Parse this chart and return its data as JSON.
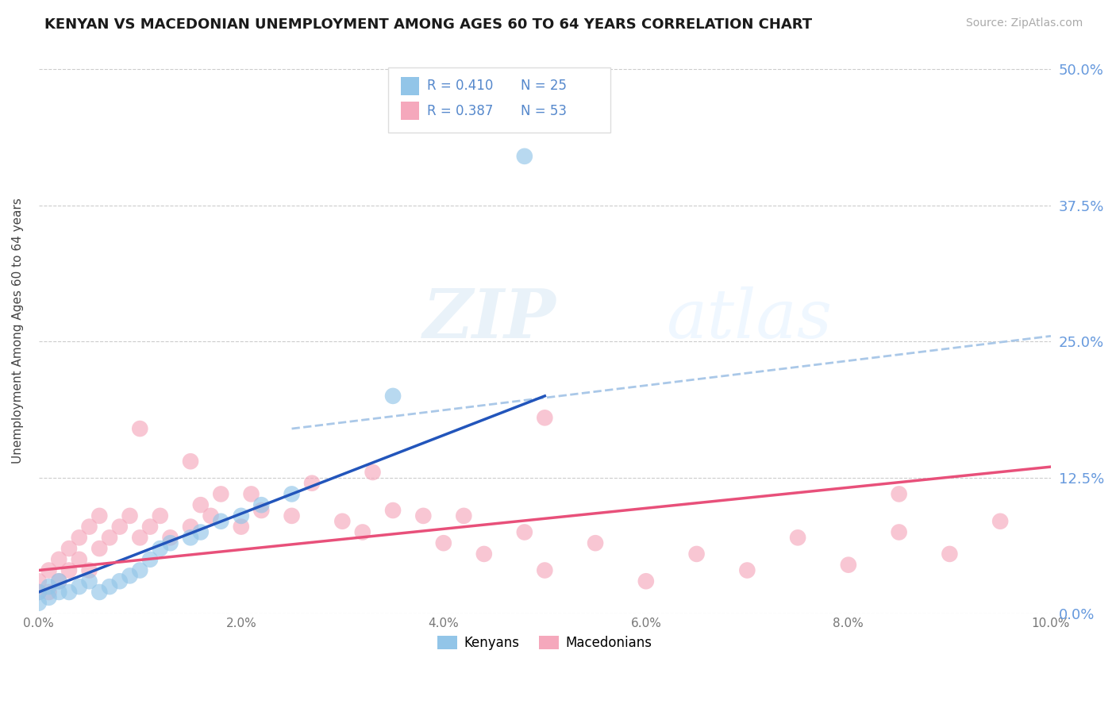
{
  "title": "KENYAN VS MACEDONIAN UNEMPLOYMENT AMONG AGES 60 TO 64 YEARS CORRELATION CHART",
  "source": "Source: ZipAtlas.com",
  "ylabel": "Unemployment Among Ages 60 to 64 years",
  "xlim": [
    0.0,
    0.1
  ],
  "ylim": [
    0.0,
    0.52
  ],
  "xticks": [
    0.0,
    0.02,
    0.04,
    0.06,
    0.08,
    0.1
  ],
  "xticklabels": [
    "0.0%",
    "2.0%",
    "4.0%",
    "6.0%",
    "8.0%",
    "10.0%"
  ],
  "yticks": [
    0.0,
    0.125,
    0.25,
    0.375,
    0.5
  ],
  "yticklabels": [
    "0.0%",
    "12.5%",
    "25.0%",
    "37.5%",
    "50.0%"
  ],
  "legend_r1": "R = 0.410",
  "legend_n1": "N = 25",
  "legend_r2": "R = 0.387",
  "legend_n2": "N = 53",
  "kenyan_color": "#92c5e8",
  "macedonian_color": "#f5a8bc",
  "kenyan_line_color": "#2255bb",
  "macedonian_line_color": "#e8507a",
  "dashed_line_color": "#aac8e8",
  "kenyan_x": [
    0.0,
    0.0,
    0.001,
    0.001,
    0.002,
    0.002,
    0.003,
    0.004,
    0.005,
    0.006,
    0.007,
    0.008,
    0.009,
    0.01,
    0.011,
    0.012,
    0.013,
    0.015,
    0.016,
    0.018,
    0.02,
    0.022,
    0.025,
    0.048,
    0.035
  ],
  "kenyan_y": [
    0.01,
    0.02,
    0.015,
    0.025,
    0.02,
    0.03,
    0.02,
    0.025,
    0.03,
    0.02,
    0.025,
    0.03,
    0.035,
    0.04,
    0.05,
    0.06,
    0.065,
    0.07,
    0.075,
    0.085,
    0.09,
    0.1,
    0.11,
    0.42,
    0.2
  ],
  "macedonian_x": [
    0.0,
    0.0,
    0.001,
    0.001,
    0.002,
    0.002,
    0.003,
    0.003,
    0.004,
    0.004,
    0.005,
    0.005,
    0.006,
    0.006,
    0.007,
    0.008,
    0.009,
    0.01,
    0.011,
    0.012,
    0.013,
    0.015,
    0.016,
    0.017,
    0.018,
    0.02,
    0.021,
    0.022,
    0.025,
    0.027,
    0.03,
    0.032,
    0.035,
    0.038,
    0.04,
    0.042,
    0.044,
    0.048,
    0.05,
    0.055,
    0.06,
    0.065,
    0.07,
    0.075,
    0.08,
    0.085,
    0.09,
    0.095,
    0.033,
    0.01,
    0.015,
    0.05,
    0.085
  ],
  "macedonian_y": [
    0.02,
    0.03,
    0.02,
    0.04,
    0.03,
    0.05,
    0.04,
    0.06,
    0.05,
    0.07,
    0.04,
    0.08,
    0.06,
    0.09,
    0.07,
    0.08,
    0.09,
    0.07,
    0.08,
    0.09,
    0.07,
    0.08,
    0.1,
    0.09,
    0.11,
    0.08,
    0.11,
    0.095,
    0.09,
    0.12,
    0.085,
    0.075,
    0.095,
    0.09,
    0.065,
    0.09,
    0.055,
    0.075,
    0.04,
    0.065,
    0.03,
    0.055,
    0.04,
    0.07,
    0.045,
    0.075,
    0.055,
    0.085,
    0.13,
    0.17,
    0.14,
    0.18,
    0.11
  ],
  "kenyan_line_x0": 0.0,
  "kenyan_line_y0": 0.02,
  "kenyan_line_x1": 0.05,
  "kenyan_line_y1": 0.2,
  "macedonian_line_x0": 0.0,
  "macedonian_line_y0": 0.04,
  "macedonian_line_x1": 0.1,
  "macedonian_line_y1": 0.135,
  "dashed_line_x0": 0.025,
  "dashed_line_y0": 0.17,
  "dashed_line_x1": 0.1,
  "dashed_line_y1": 0.255
}
